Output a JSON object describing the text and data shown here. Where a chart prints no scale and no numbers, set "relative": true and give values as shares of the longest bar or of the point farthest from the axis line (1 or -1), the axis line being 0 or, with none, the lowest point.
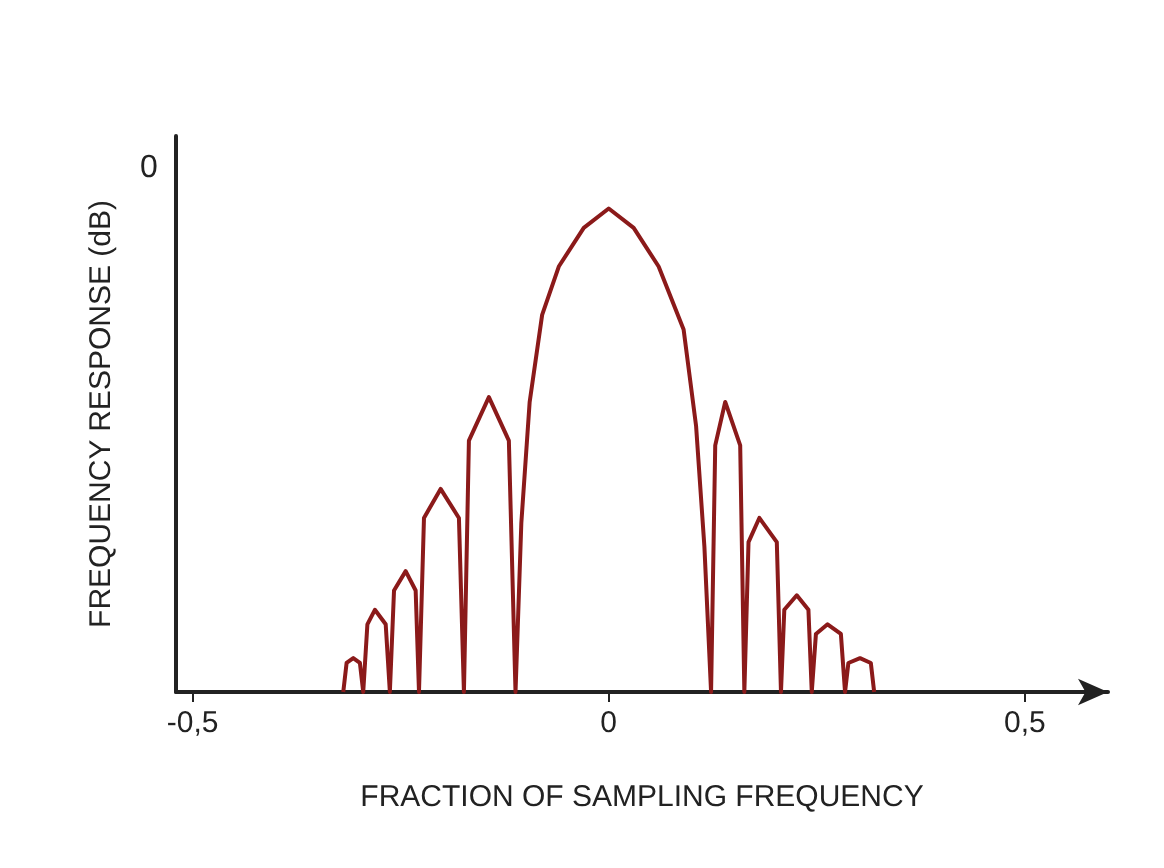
{
  "chart_data": {
    "type": "line",
    "relative": true,
    "xlabel": "FRACTION OF SAMPLING FREQUENCY",
    "ylabel": "FREQUENCY RESPONSE (dB)",
    "annotations": [
      "0"
    ],
    "xlim": [
      -0.52,
      0.6
    ],
    "xticks": [
      {
        "value": -0.5,
        "label": "-0,5"
      },
      0,
      {
        "value": 0.5,
        "label": "0,5"
      }
    ],
    "grid": false,
    "marker": "none",
    "line_style": "solid",
    "series": [
      {
        "color": "#8b1a1a",
        "x": [
          -0.319,
          -0.315,
          -0.307,
          -0.299,
          -0.295,
          -0.29,
          -0.281,
          -0.268,
          -0.263,
          -0.258,
          -0.244,
          -0.232,
          -0.228,
          -0.222,
          -0.202,
          -0.18,
          -0.174,
          -0.168,
          -0.144,
          -0.12,
          -0.112,
          -0.105,
          -0.095,
          -0.08,
          -0.06,
          -0.03,
          0,
          0.03,
          0.06,
          0.09,
          0.105,
          0.115,
          0.123,
          0.128,
          0.14,
          0.158,
          0.163,
          0.168,
          0.181,
          0.202,
          0.207,
          0.211,
          0.226,
          0.24,
          0.244,
          0.249,
          0.263,
          0.279,
          0.284,
          0.288,
          0.302,
          0.315,
          0.319
        ],
        "values": [
          0,
          0.06,
          0.07,
          0.06,
          0,
          0.14,
          0.17,
          0.14,
          0,
          0.21,
          0.25,
          0.21,
          0,
          0.36,
          0.42,
          0.36,
          0,
          0.52,
          0.61,
          0.52,
          0,
          0.35,
          0.6,
          0.78,
          0.88,
          0.96,
          1,
          0.96,
          0.88,
          0.75,
          0.55,
          0.3,
          0,
          0.51,
          0.6,
          0.51,
          0,
          0.31,
          0.36,
          0.31,
          0,
          0.17,
          0.2,
          0.17,
          0,
          0.12,
          0.14,
          0.12,
          0,
          0.06,
          0.07,
          0.06,
          0
        ]
      }
    ]
  }
}
